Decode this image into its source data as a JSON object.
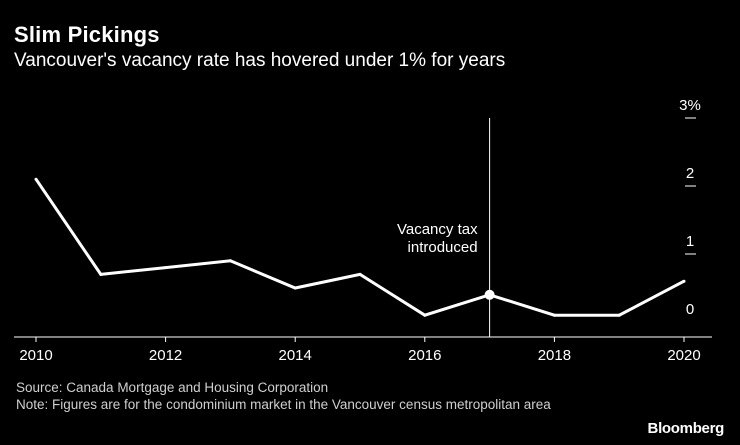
{
  "header": {
    "title": "Slim Pickings",
    "subtitle": "Vancouver's vacancy rate has hovered under 1% for years"
  },
  "chart_data": {
    "type": "line",
    "title": "Slim Pickings",
    "subtitle": "Vancouver's vacancy rate has hovered under 1% for years",
    "xlabel": "",
    "ylabel": "",
    "x": [
      2010,
      2011,
      2012,
      2013,
      2014,
      2015,
      2016,
      2017,
      2018,
      2019,
      2020
    ],
    "series": [
      {
        "name": "Vacancy rate",
        "values": [
          2.1,
          0.7,
          0.8,
          0.9,
          0.5,
          0.7,
          0.1,
          0.4,
          0.1,
          0.1,
          0.6
        ]
      }
    ],
    "xlim": [
      2010,
      2020
    ],
    "ylim": [
      0,
      3
    ],
    "x_ticks": [
      "2010",
      "2012",
      "2014",
      "2016",
      "2018",
      "2020"
    ],
    "y_ticks": [
      "0",
      "1",
      "2",
      "3%"
    ],
    "annotation": {
      "x": 2017,
      "y": 0.4,
      "text_line1": "Vacancy tax",
      "text_line2": "introduced"
    },
    "colors": {
      "line": "#ffffff",
      "background": "#000000",
      "axis": "#ffffff"
    }
  },
  "footer": {
    "source": "Source: Canada Mortgage and Housing Corporation",
    "note": "Note: Figures are for the condominium market in the Vancouver census metropolitan area"
  },
  "brand": "Bloomberg"
}
